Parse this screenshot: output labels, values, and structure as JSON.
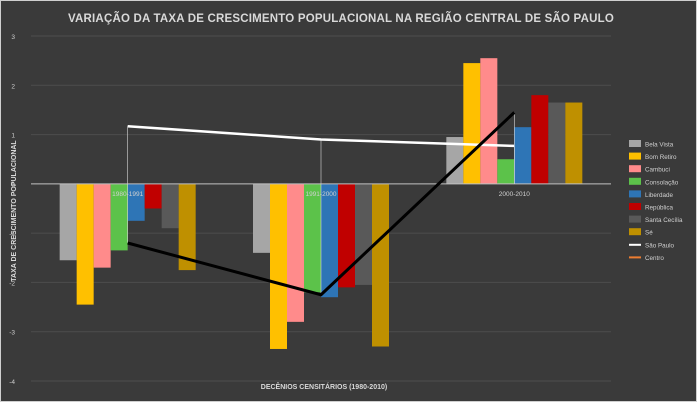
{
  "chart_data": {
    "type": "bar",
    "title": "VARIAÇÃO DA TAXA DE CRESCIMENTO POPULACIONAL NA REGIÃO CENTRAL DE SÃO PAULO",
    "xlabel": "DECÊNIOS CENSITÁRIOS (1980-2010)",
    "ylabel": "TAXA DE CRESCIMENTO POPULACIONAL",
    "categories": [
      "1980-1991",
      "1991-2000",
      "2000-2010"
    ],
    "ylim": [
      -4,
      3
    ],
    "yticks": [
      "3",
      "2",
      "1",
      "0",
      "-1",
      "-2",
      "-3",
      "-4"
    ],
    "legend_position": "right",
    "series": [
      {
        "name": "Bela Vista",
        "kind": "bar",
        "color": "#a6a6a6",
        "values": [
          -1.55,
          -1.4,
          0.95
        ]
      },
      {
        "name": "Bom Retiro",
        "kind": "bar",
        "color": "#ffc000",
        "values": [
          -2.45,
          -3.35,
          2.45
        ]
      },
      {
        "name": "Cambuci",
        "kind": "bar",
        "color": "#ff8b8b",
        "values": [
          -1.7,
          -2.8,
          2.55
        ]
      },
      {
        "name": "Consolação",
        "kind": "bar",
        "color": "#5cc24a",
        "values": [
          -1.35,
          -2.2,
          0.5
        ]
      },
      {
        "name": "Liberdade",
        "kind": "bar",
        "color": "#2e75b6",
        "values": [
          -0.75,
          -2.3,
          1.15
        ]
      },
      {
        "name": "República",
        "kind": "bar",
        "color": "#c00000",
        "values": [
          -0.5,
          -2.1,
          1.8
        ]
      },
      {
        "name": "Santa Cecília",
        "kind": "bar",
        "color": "#595959",
        "values": [
          -0.9,
          -2.05,
          1.65
        ]
      },
      {
        "name": "Sé",
        "kind": "bar",
        "color": "#bf9000",
        "values": [
          -1.75,
          -3.3,
          1.65
        ]
      },
      {
        "name": "São Paulo",
        "kind": "line",
        "color": "#ffffff",
        "values": [
          1.17,
          0.9,
          0.77
        ]
      },
      {
        "name": "Centro",
        "kind": "line",
        "color": "#ed7d31",
        "values": [
          -1.2,
          -2.25,
          1.45
        ]
      }
    ],
    "lines_drawn_dark": {
      "Centro": "#000000"
    }
  }
}
